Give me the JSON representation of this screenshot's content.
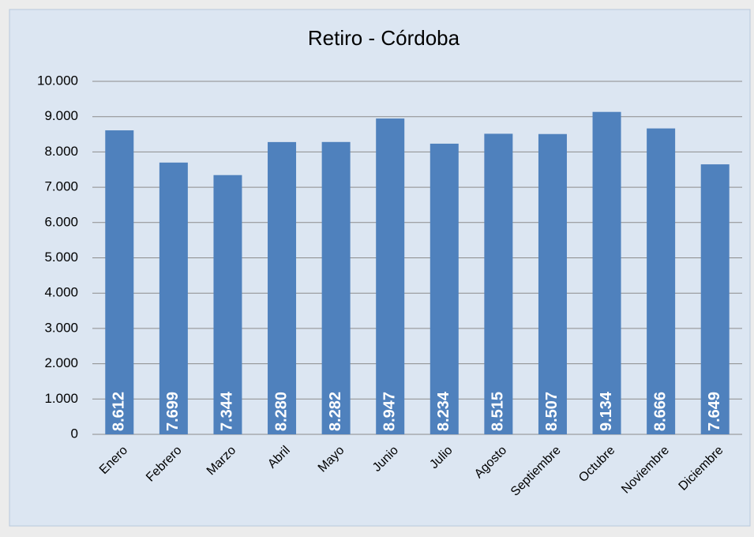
{
  "chart_data": {
    "type": "bar",
    "title": "Retiro - Córdoba",
    "categories": [
      "Enero",
      "Febrero",
      "Marzo",
      "Abril",
      "Mayo",
      "Junio",
      "Julio",
      "Agosto",
      "Septiembre",
      "Octubre",
      "Noviembre",
      "Diciembre"
    ],
    "values": [
      8612,
      7699,
      7344,
      8280,
      8282,
      8947,
      8234,
      8515,
      8507,
      9134,
      8666,
      7649
    ],
    "value_labels": [
      "8.612",
      "7.699",
      "7.344",
      "8.280",
      "8.282",
      "8.947",
      "8.234",
      "8.515",
      "8.507",
      "9.134",
      "8.666",
      "7.649"
    ],
    "color": "#4f81bd",
    "ylim": [
      0,
      10000
    ],
    "yticks": [
      0,
      {
        "value": 1000,
        "label": "1.000"
      },
      {
        "value": 2000,
        "label": "2.000"
      },
      {
        "value": 3000,
        "label": "3.000"
      },
      {
        "value": 4000,
        "label": "4.000"
      },
      {
        "value": 5000,
        "label": "5.000"
      },
      {
        "value": 6000,
        "label": "6.000"
      },
      {
        "value": 7000,
        "label": "7.000"
      },
      {
        "value": 8000,
        "label": "8.000"
      },
      {
        "value": 9000,
        "label": "9.000"
      },
      {
        "value": 10000,
        "label": "10.000"
      }
    ],
    "grid": true
  }
}
